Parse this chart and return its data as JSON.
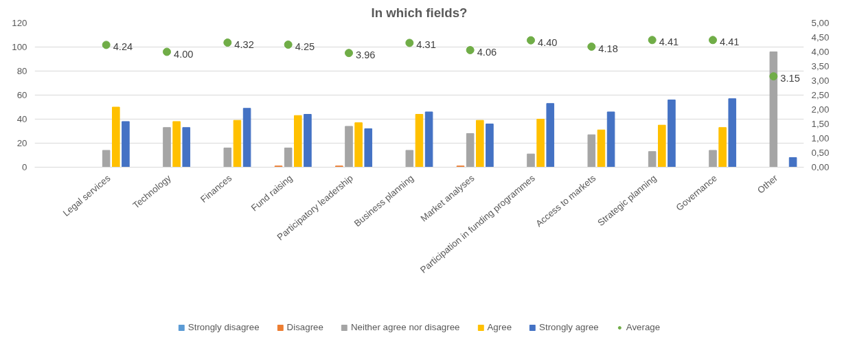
{
  "chart_data": {
    "type": "bar",
    "title": "In which fields?",
    "categories": [
      "Legal services",
      "Technology",
      "Finances",
      "Fund raising",
      "Participatory leadership",
      "Business planning",
      "Market analyses",
      "Participation in funding programmes",
      "Access to markets",
      "Strategic planning",
      "Governance",
      "Other"
    ],
    "series": [
      {
        "name": "Strongly disagree",
        "color": "#5b9bd5",
        "values": [
          null,
          null,
          null,
          null,
          null,
          null,
          null,
          null,
          null,
          null,
          null,
          null
        ]
      },
      {
        "name": "Disagree",
        "color": "#ed7d31",
        "values": [
          null,
          null,
          null,
          1,
          1,
          null,
          1,
          null,
          null,
          null,
          null,
          null
        ]
      },
      {
        "name": "Neither agree nor disagree",
        "color": "#a5a5a5",
        "values": [
          14,
          33,
          16,
          16,
          34,
          14,
          28,
          11,
          27,
          13,
          14,
          96
        ]
      },
      {
        "name": "Agree",
        "color": "#ffc000",
        "values": [
          50,
          38,
          39,
          43,
          37,
          44,
          39,
          40,
          31,
          35,
          33,
          null
        ]
      },
      {
        "name": "Strongly agree",
        "color": "#4472c4",
        "values": [
          38,
          33,
          49,
          44,
          32,
          46,
          36,
          53,
          46,
          56,
          57,
          8
        ]
      },
      {
        "name": "Average",
        "color": "#70ad47",
        "type": "scatter",
        "axis": "y2",
        "marker": "circle",
        "values": [
          4.24,
          4.0,
          4.32,
          4.25,
          3.96,
          4.31,
          4.06,
          4.4,
          4.18,
          4.41,
          4.41,
          3.15
        ],
        "value_labels": [
          "4.24",
          "4.00",
          "4.32",
          "4.25",
          "3.96",
          "4.31",
          "4.06",
          "4.40",
          "4.18",
          "4.41",
          "4.41",
          "3.15"
        ]
      }
    ],
    "ylim": [
      0,
      120
    ],
    "yticks": [
      0,
      20,
      40,
      60,
      80,
      100,
      120
    ],
    "y2lim": [
      0,
      5
    ],
    "y2ticks": [
      {
        "value": 0,
        "label": "0,00"
      },
      {
        "value": 0.5,
        "label": "0,50"
      },
      {
        "value": 1,
        "label": "1,00"
      },
      {
        "value": 1.5,
        "label": "1,50"
      },
      {
        "value": 2,
        "label": "2,00"
      },
      {
        "value": 2.5,
        "label": "2,50"
      },
      {
        "value": 3,
        "label": "3,00"
      },
      {
        "value": 3.5,
        "label": "3,50"
      },
      {
        "value": 4,
        "label": "4,00"
      },
      {
        "value": 4.5,
        "label": "4,50"
      },
      {
        "value": 5,
        "label": "5,00"
      }
    ],
    "grid": "y",
    "legend": "bottom"
  }
}
